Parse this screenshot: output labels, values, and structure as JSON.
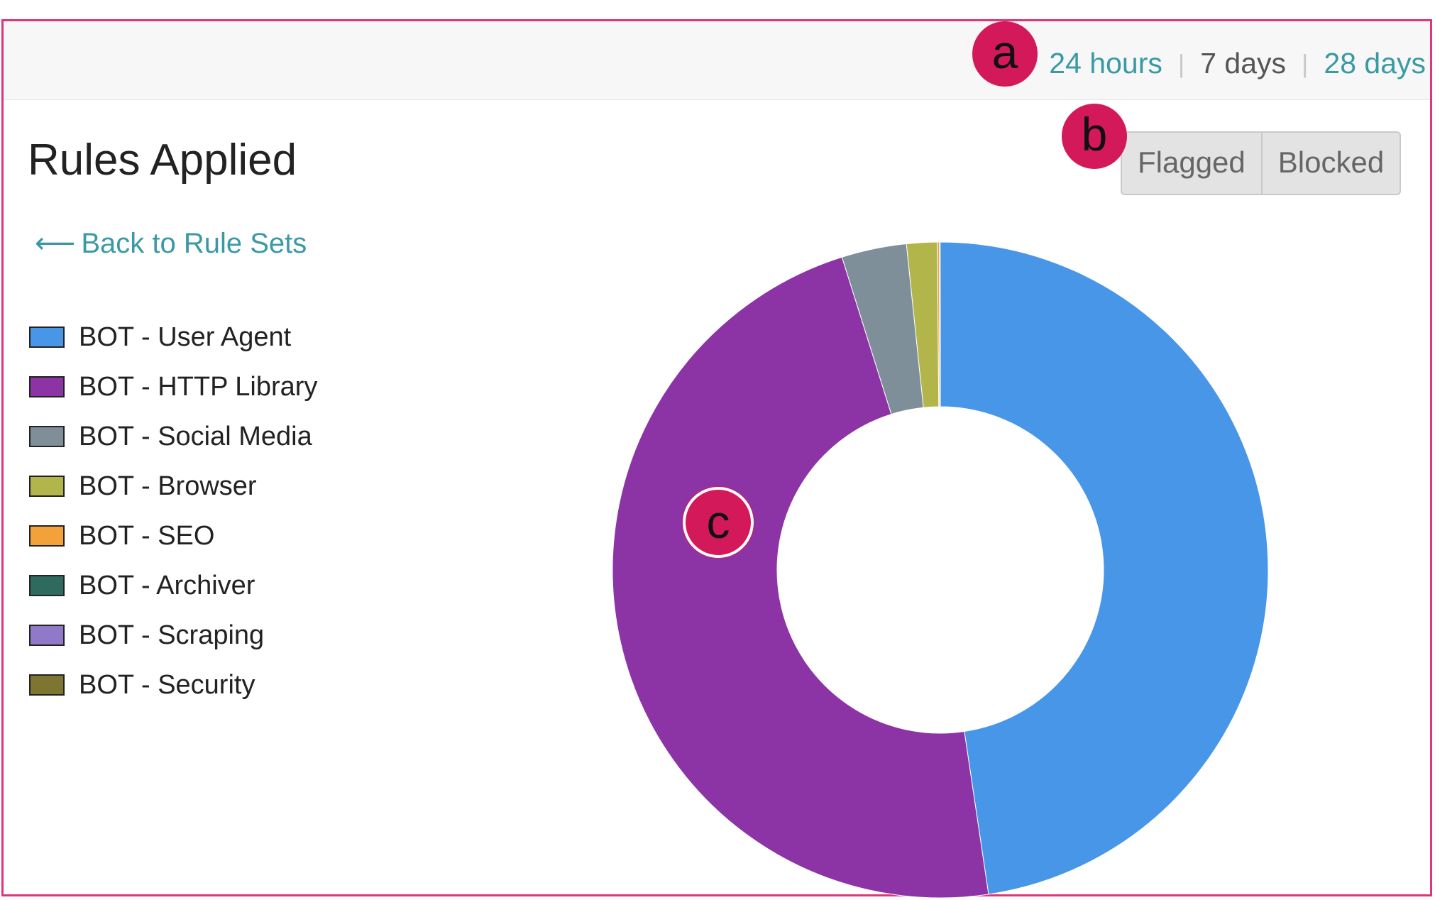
{
  "header": {
    "range_options": [
      "24 hours",
      "7 days",
      "28 days"
    ],
    "active_range": "7 days"
  },
  "callouts": {
    "a": "a",
    "b": "b",
    "c": "c"
  },
  "panel": {
    "title": "Rules Applied",
    "back_link": "Back to Rule Sets",
    "toggle": {
      "flagged": "Flagged",
      "blocked": "Blocked"
    }
  },
  "colors": {
    "accent": "#3a9aa3",
    "callout": "#d4195a",
    "frame": "#e0357a"
  },
  "chart_data": {
    "type": "pie",
    "donut": true,
    "categories": [
      "BOT - User Agent",
      "BOT - HTTP Library",
      "BOT - Social Media",
      "BOT - Browser",
      "BOT - SEO",
      "BOT - Archiver",
      "BOT - Scraping",
      "BOT - Security"
    ],
    "values": [
      47.65,
      47.5,
      3.2,
      1.5,
      0.1,
      0.05,
      0.0,
      0.0
    ],
    "colors": [
      "#4796e8",
      "#8c34a6",
      "#7f8f9a",
      "#b1b54a",
      "#f3a23a",
      "#2e6b5e",
      "#9079c9",
      "#7d7530"
    ],
    "legend_position": "left"
  }
}
